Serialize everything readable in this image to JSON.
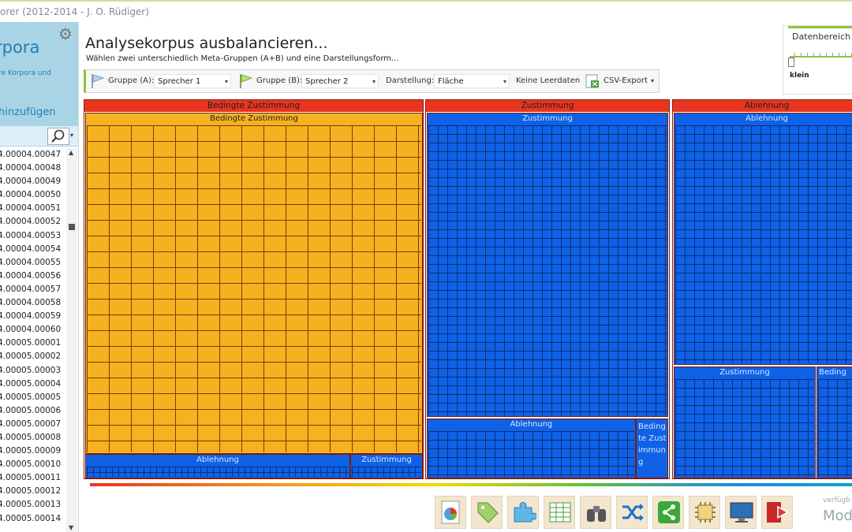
{
  "window": {
    "title": "orer (2012-2014 - J. O. Rüdiger)"
  },
  "sidebar": {
    "title": "rpora",
    "subtitle": "re Korpora und",
    "add_label": " hinzufügen",
    "files": [
      "4.00004.00047",
      "4.00004.00048",
      "4.00004.00049",
      "4.00004.00050",
      "4.00004.00051",
      "4.00004.00052",
      "4.00004.00053",
      "4.00004.00054",
      "4.00004.00055",
      "4.00004.00056",
      "4.00004.00057",
      "4.00004.00058",
      "4.00004.00059",
      "4.00004.00060",
      "4.00005.00001",
      "4.00005.00002",
      "4.00005.00003",
      "4.00005.00004",
      "4.00005.00005",
      "4.00005.00006",
      "4.00005.00007",
      "4.00005.00008",
      "4.00005.00009",
      "4.00005.00010",
      "4.00005.00011",
      "4.00005.00012",
      "4.00005.00013",
      "4.00005.00014"
    ]
  },
  "main": {
    "title": "Analysekorpus  ausbalancieren...",
    "subtitle": "Wählen zwei unterschiedlich Meta-Gruppen (A+B) und eine Darstellungsform..."
  },
  "range": {
    "label": "Datenbereich",
    "value": "klein"
  },
  "toolbar": {
    "group_a_label": "Gruppe (A):",
    "group_a_value": "Sprecher 1",
    "group_b_label": "Gruppe (B):",
    "group_b_value": "Sprecher 2",
    "display_label": "Darstellung:",
    "display_value": "Fläche",
    "empty_label": "Keine Leerdaten",
    "export_label": "CSV-Export"
  },
  "treemap": {
    "groups": [
      {
        "label": "Bedingte Zustimmung",
        "subs": [
          {
            "label": "Bedingte Zustimmung",
            "color": "#f5b120"
          },
          {
            "label": "Ablehnung",
            "color": "#0f61e6"
          },
          {
            "label": "Zustimmung",
            "color": "#0f61e6"
          }
        ]
      },
      {
        "label": "Zustimmung",
        "subs": [
          {
            "label": "Zustimmung",
            "color": "#0f61e6"
          },
          {
            "label": "Ablehnung",
            "color": "#0f61e6"
          },
          {
            "label": "Bedingte Zustimmung",
            "color": "#0f61e6"
          }
        ]
      },
      {
        "label": "Ablehnung",
        "subs": [
          {
            "label": "Ablehnung",
            "color": "#0f61e6"
          },
          {
            "label": "Zustimmung",
            "color": "#0f61e6"
          },
          {
            "label": "Beding",
            "color": "#0f61e6"
          }
        ]
      }
    ]
  },
  "footer": {
    "mode_small": "verfügb",
    "mode_large": "Mod"
  },
  "icons": [
    "pie-chart-icon",
    "tag-icon",
    "puzzle-icon",
    "table-icon",
    "binoculars-icon",
    "shuffle-icon",
    "share-icon",
    "chip-icon",
    "monitor-icon",
    "exit-icon"
  ],
  "colors": {
    "red": "#e8351f",
    "yellow": "#f5b120",
    "blue": "#0f61e6",
    "accent": "#8cc63f"
  }
}
